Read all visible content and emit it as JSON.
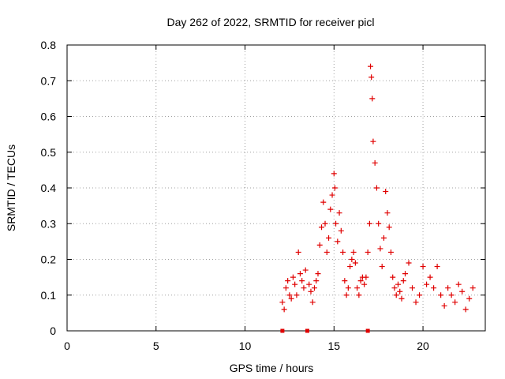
{
  "chart_data": {
    "type": "scatter",
    "title": "Day 262 of 2022, SRMTID for receiver picl",
    "xlabel": "GPS time / hours",
    "ylabel": "SRMTID / TECUs",
    "xlim": [
      0,
      23.5
    ],
    "ylim": [
      0,
      0.8
    ],
    "xticks": [
      0,
      5,
      10,
      15,
      20
    ],
    "xtick_labels": [
      "0",
      "5",
      "10",
      "15",
      "20"
    ],
    "yticks": [
      0,
      0.1,
      0.2,
      0.3,
      0.4,
      0.5,
      0.6,
      0.7,
      0.8
    ],
    "ytick_labels": [
      "0",
      "0.1",
      "0.2",
      "0.3",
      "0.4",
      "0.5",
      "0.6",
      "0.7",
      "0.8"
    ],
    "grid": true,
    "legend": "none",
    "colors": {
      "marker": "#e00000",
      "grid": "#a0a0a0",
      "frame": "#000000"
    },
    "series": [
      {
        "name": "SRMTID",
        "marker": "plus",
        "points": [
          [
            12.1,
            0.08
          ],
          [
            12.2,
            0.06
          ],
          [
            12.3,
            0.12
          ],
          [
            12.4,
            0.14
          ],
          [
            12.5,
            0.1
          ],
          [
            12.6,
            0.09
          ],
          [
            12.7,
            0.15
          ],
          [
            12.8,
            0.13
          ],
          [
            12.9,
            0.1
          ],
          [
            13.0,
            0.22
          ],
          [
            13.1,
            0.16
          ],
          [
            13.2,
            0.14
          ],
          [
            13.3,
            0.12
          ],
          [
            13.4,
            0.17
          ],
          [
            13.6,
            0.13
          ],
          [
            13.7,
            0.11
          ],
          [
            13.8,
            0.08
          ],
          [
            13.9,
            0.12
          ],
          [
            14.0,
            0.14
          ],
          [
            14.1,
            0.16
          ],
          [
            14.2,
            0.24
          ],
          [
            14.3,
            0.29
          ],
          [
            14.4,
            0.36
          ],
          [
            14.5,
            0.3
          ],
          [
            14.6,
            0.22
          ],
          [
            14.7,
            0.26
          ],
          [
            14.8,
            0.34
          ],
          [
            14.9,
            0.38
          ],
          [
            15.0,
            0.44
          ],
          [
            15.05,
            0.4
          ],
          [
            15.1,
            0.3
          ],
          [
            15.2,
            0.25
          ],
          [
            15.3,
            0.33
          ],
          [
            15.4,
            0.28
          ],
          [
            15.5,
            0.22
          ],
          [
            15.6,
            0.14
          ],
          [
            15.7,
            0.1
          ],
          [
            15.8,
            0.12
          ],
          [
            15.9,
            0.18
          ],
          [
            16.0,
            0.2
          ],
          [
            16.1,
            0.22
          ],
          [
            16.2,
            0.19
          ],
          [
            16.3,
            0.12
          ],
          [
            16.4,
            0.1
          ],
          [
            16.5,
            0.14
          ],
          [
            16.6,
            0.15
          ],
          [
            16.7,
            0.13
          ],
          [
            16.8,
            0.15
          ],
          [
            16.9,
            0.22
          ],
          [
            17.0,
            0.3
          ],
          [
            17.05,
            0.74
          ],
          [
            17.1,
            0.71
          ],
          [
            17.15,
            0.65
          ],
          [
            17.2,
            0.53
          ],
          [
            17.3,
            0.47
          ],
          [
            17.4,
            0.4
          ],
          [
            17.5,
            0.3
          ],
          [
            17.6,
            0.23
          ],
          [
            17.7,
            0.18
          ],
          [
            17.8,
            0.26
          ],
          [
            17.9,
            0.39
          ],
          [
            18.0,
            0.33
          ],
          [
            18.1,
            0.29
          ],
          [
            18.2,
            0.22
          ],
          [
            18.3,
            0.15
          ],
          [
            18.4,
            0.12
          ],
          [
            18.5,
            0.1
          ],
          [
            18.6,
            0.13
          ],
          [
            18.7,
            0.11
          ],
          [
            18.8,
            0.09
          ],
          [
            18.9,
            0.14
          ],
          [
            19.0,
            0.16
          ],
          [
            19.2,
            0.19
          ],
          [
            19.4,
            0.12
          ],
          [
            19.6,
            0.08
          ],
          [
            19.8,
            0.1
          ],
          [
            20.0,
            0.18
          ],
          [
            20.2,
            0.13
          ],
          [
            20.4,
            0.15
          ],
          [
            20.6,
            0.12
          ],
          [
            20.8,
            0.18
          ],
          [
            21.0,
            0.1
          ],
          [
            21.2,
            0.07
          ],
          [
            21.4,
            0.12
          ],
          [
            21.6,
            0.1
          ],
          [
            21.8,
            0.08
          ],
          [
            22.0,
            0.13
          ],
          [
            22.2,
            0.11
          ],
          [
            22.4,
            0.06
          ],
          [
            22.6,
            0.09
          ],
          [
            22.8,
            0.12
          ]
        ]
      }
    ],
    "markers_on_axis": [
      12.1,
      13.5,
      16.9
    ]
  }
}
